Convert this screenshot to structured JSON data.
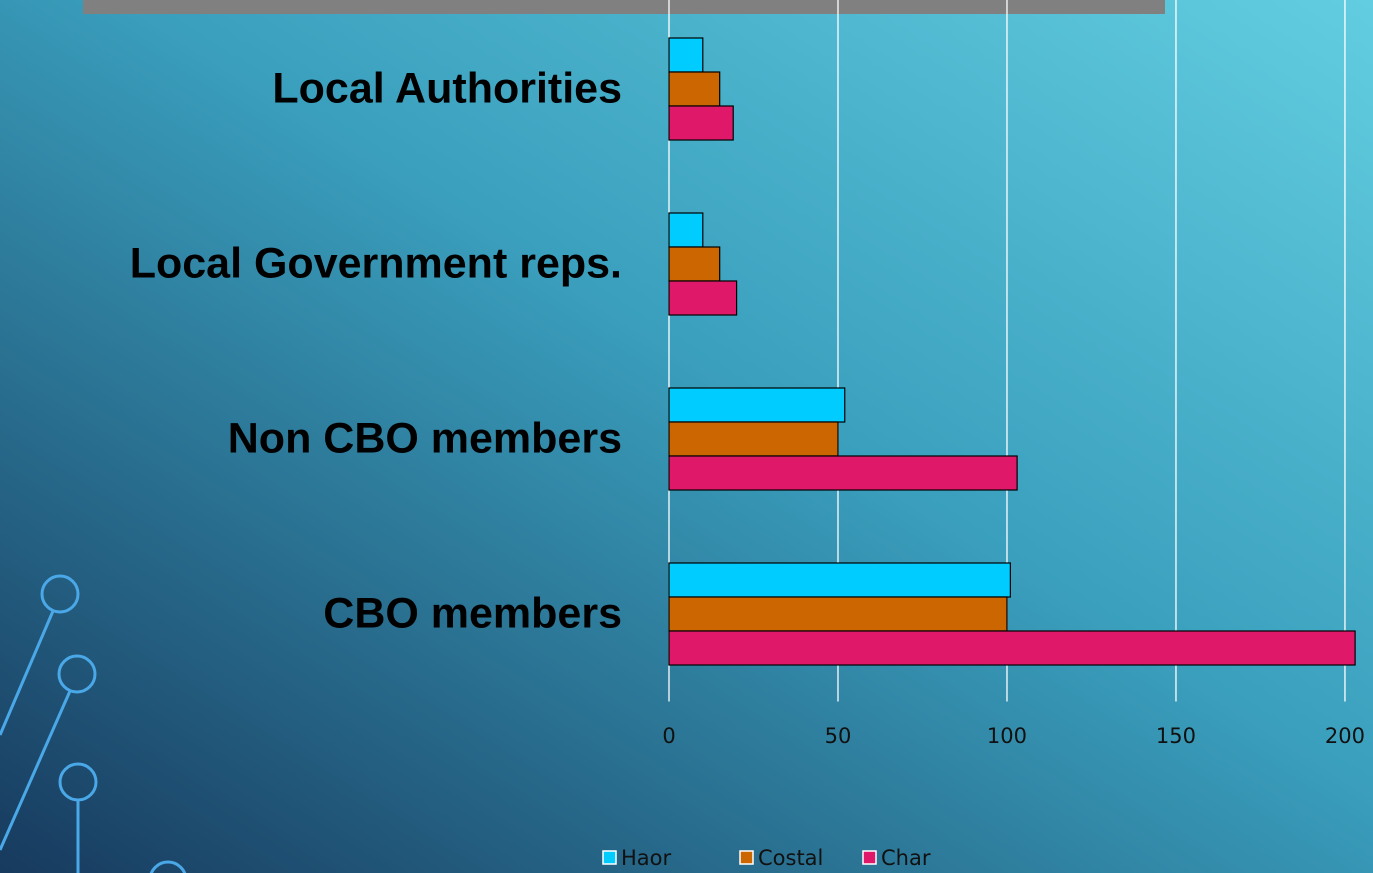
{
  "chart_data": {
    "type": "hbar",
    "categories": [
      "Local Authorities",
      "Local Government reps.",
      "Non CBO members",
      "CBO members"
    ],
    "series": [
      {
        "name": "Haor",
        "color": "#00ccff",
        "values": [
          10,
          10,
          52,
          101
        ]
      },
      {
        "name": "Costal",
        "color": "#cc6600",
        "values": [
          15,
          15,
          50,
          100
        ]
      },
      {
        "name": "Char",
        "color": "#e0186a",
        "values": [
          19,
          20,
          103,
          203
        ]
      }
    ],
    "xlim": [
      0,
      208
    ],
    "xticks": [
      0,
      50,
      100,
      150,
      200
    ],
    "grid": true,
    "legend": "bottom"
  }
}
